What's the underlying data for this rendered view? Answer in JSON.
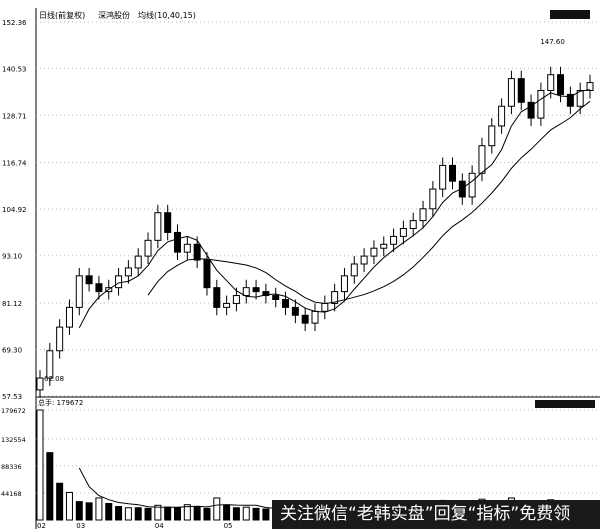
{
  "header": {
    "title": "日线(前复权)",
    "stock": "深鸿股份",
    "ma_label": "均线(10,40,15)"
  },
  "volume_header": "总手: 179672",
  "watermark": "关注微信“老韩实盘”回复“指标”免费领",
  "chart_data": [
    {
      "type": "candlestick",
      "ylim": [
        57.53,
        152.36
      ],
      "yticks": [
        "152.36",
        "140.53",
        "128.71",
        "116.74",
        "104.92",
        "93.10",
        "81.12",
        "69.30",
        "57.53"
      ],
      "ytick_values": [
        152.36,
        140.53,
        128.71,
        116.74,
        104.92,
        93.1,
        81.12,
        69.3,
        57.53
      ],
      "xticks": [
        "02",
        "03",
        "04",
        "05",
        "06"
      ],
      "annotations": [
        {
          "text": "147.60",
          "value": 147.6
        },
        {
          "text": "62.08",
          "value": 62.08
        }
      ],
      "closes": [
        62.08,
        69,
        75,
        80,
        88,
        86,
        84,
        85,
        88,
        90,
        93,
        97,
        104,
        99,
        94,
        96,
        92,
        85,
        80,
        81,
        83,
        85,
        84,
        83,
        82,
        80,
        78,
        76,
        79,
        81,
        84,
        88,
        91,
        93,
        95,
        96,
        98,
        100,
        102,
        105,
        110,
        116,
        112,
        108,
        114,
        121,
        126,
        131,
        138,
        132,
        128,
        135,
        139,
        134,
        131,
        135,
        137
      ],
      "month_index": {
        "02": 0,
        "03": 4,
        "04": 12,
        "05": 19,
        "06": 26
      },
      "ma_colors": [
        "#000000",
        "#000000"
      ]
    },
    {
      "type": "bar",
      "ylim": [
        0,
        179672
      ],
      "yticks": [
        "179672",
        "132554",
        "88336",
        "44168"
      ],
      "ytick_values": [
        179672,
        132554,
        88336,
        44168
      ],
      "values": [
        179672,
        110000,
        60000,
        45000,
        30000,
        28000,
        36000,
        27000,
        22000,
        20000,
        20000,
        19000,
        24000,
        21000,
        20000,
        25000,
        22000,
        19000,
        36000,
        24000,
        20000,
        21000,
        19000,
        18000,
        17000,
        16000,
        15000,
        14000,
        16000,
        18000,
        22000,
        20000,
        24000,
        19000,
        21000,
        23000,
        20000,
        24000,
        26000,
        22000,
        28000,
        32000,
        27000,
        25000,
        30000,
        34000,
        29000,
        31000,
        36000,
        28000,
        26000,
        30000,
        33000,
        27000,
        25000,
        29000,
        31000
      ]
    }
  ]
}
